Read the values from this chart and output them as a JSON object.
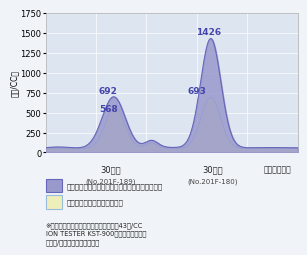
{
  "title": "",
  "ylabel": "（個/CC）",
  "ylim": [
    0,
    1750
  ],
  "yticks": [
    0,
    250,
    500,
    750,
    1000,
    1250,
    1500,
    1750
  ],
  "bg_color": "#e8eef5",
  "plot_bg_color": "#dde6f0",
  "series1_color": "#8888cc",
  "series1_fill": "#9999cc",
  "series1_alpha": 0.85,
  "series2_color": "#aaccee",
  "series2_fill": "#eeeebb",
  "series2_alpha": 0.9,
  "peak1_blue": 692,
  "peak1_yellow": 568,
  "peak2_blue": 1426,
  "peak2_yellow": 693,
  "label1": "水道水をコップに入れて森修焼の上にのせたもの",
  "label2": "水道水をコップに入れたもの",
  "xlabel1": "30秒後",
  "xlabel1_sub": "(No.201F-189)",
  "xlabel2": "30分後",
  "xlabel2_sub": "(No.201F-180)",
  "xlabel3": "（静置時間）",
  "footnote": "※測定時の室内マイナスイオン数は平均43個/CC\nION TESTER KST-900型（神戸電波製）\n（測定/遠赤外線応用研究会）"
}
